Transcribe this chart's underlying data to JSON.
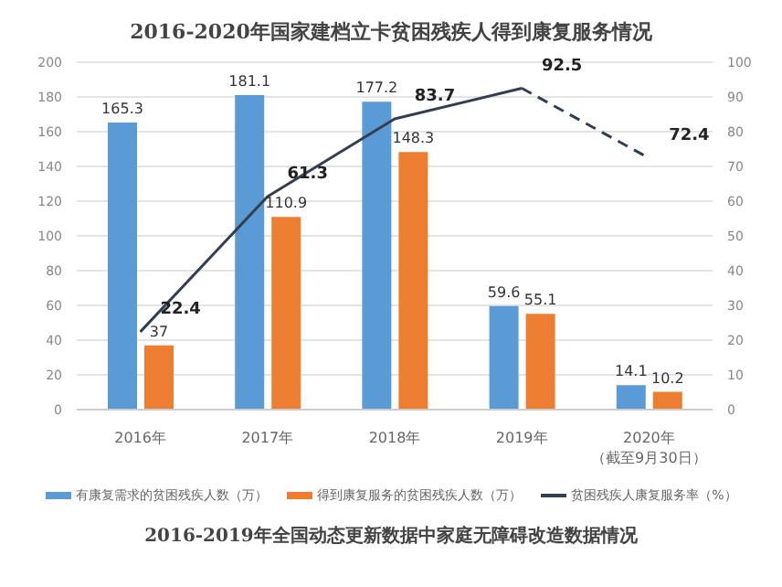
{
  "chart_data": {
    "type": "bar",
    "title": "2016-2020年国家建档立卡贫困残疾人得到康复服务情况",
    "categories": [
      "2016年",
      "2017年",
      "2018年",
      "2019年",
      "2020年（截至9月30日）"
    ],
    "series": [
      {
        "name": "有康复需求的贫困残疾人数（万）",
        "color": "#5b9bd5",
        "values": [
          165.3,
          181.1,
          177.2,
          59.6,
          14.1
        ]
      },
      {
        "name": "得到康复服务的贫困残疾人数（万）",
        "color": "#ed7d31",
        "values": [
          37,
          110.9,
          148.3,
          55.1,
          10.2
        ]
      },
      {
        "name": "贫困残疾人康复服务率（%）",
        "type": "line",
        "axis": "y2",
        "color": "#333f50",
        "line_style": "solid",
        "values": [
          22.4,
          61.3,
          83.7,
          92.5,
          null
        ],
        "value_labels": [
          "22.4",
          "61.3",
          "83.7",
          "92.5",
          null
        ]
      },
      {
        "type": "line",
        "axis": "y2",
        "color": "#333f50",
        "line_style": "dashed",
        "values": [
          null,
          null,
          null,
          92.5,
          72.4
        ],
        "value_labels": [
          null,
          null,
          null,
          null,
          "72.4"
        ]
      }
    ],
    "ylim": [
      0,
      200
    ],
    "yticks": [
      0,
      20,
      40,
      60,
      80,
      100,
      120,
      140,
      160,
      180,
      200
    ],
    "y2lim": [
      0,
      100
    ],
    "y2ticks": [
      0,
      10,
      20,
      30,
      40,
      50,
      60,
      70,
      80,
      90,
      100
    ],
    "grid": "y",
    "legend": "bottom",
    "data_labels": true,
    "marker": "none",
    "annotations": [
      "2016-2019年全国动态更新数据中家庭无障碍改造数据情况"
    ]
  }
}
